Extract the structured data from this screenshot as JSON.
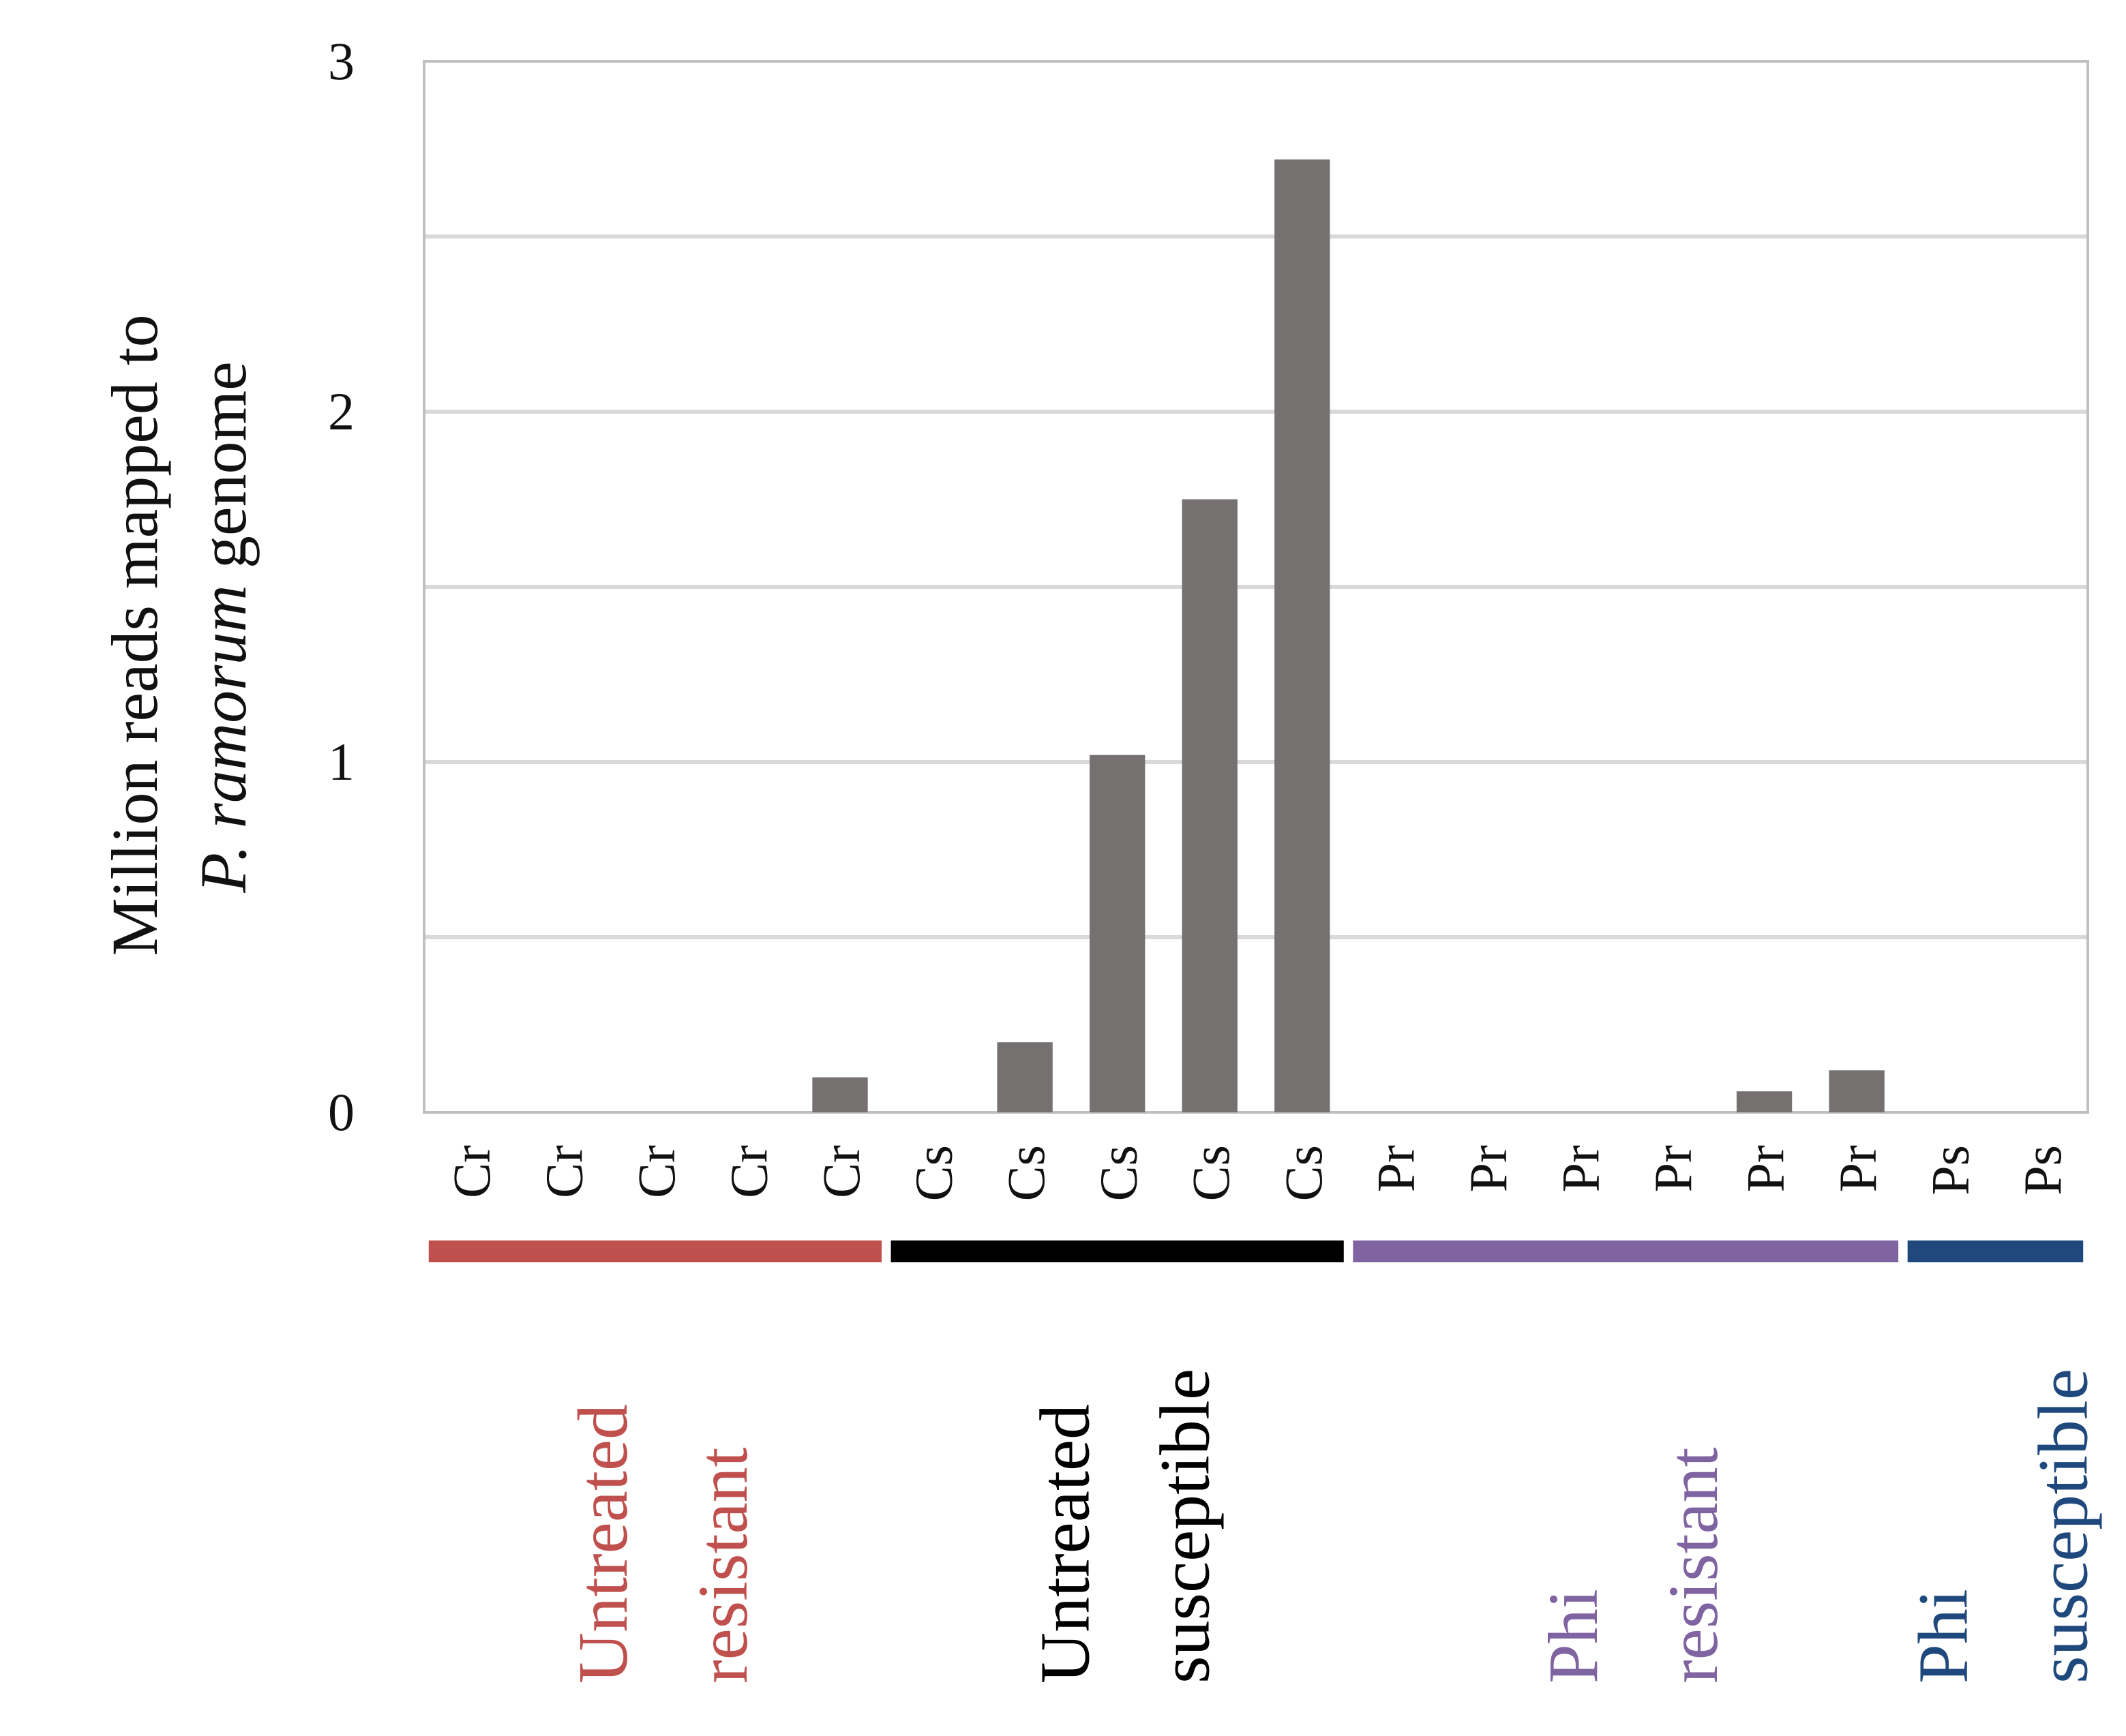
{
  "chart_data": {
    "type": "bar",
    "ylabel_line1": "Million reads mapped to",
    "ylabel_line2_italic": "P. ramorum",
    "ylabel_line2_rest": " genome",
    "ylim": [
      0,
      3
    ],
    "yticks": [
      0,
      1,
      2,
      3
    ],
    "gridlines": [
      0.5,
      1,
      1.5,
      2,
      2.5
    ],
    "grid": true,
    "bar_color": "#767171",
    "categories": [
      "Cr",
      "Cr",
      "Cr",
      "Cr",
      "Cr",
      "Cs",
      "Cs",
      "Cs",
      "Cs",
      "Cs",
      "Pr",
      "Pr",
      "Pr",
      "Pr",
      "Pr",
      "Pr",
      "Ps",
      "Ps"
    ],
    "values": [
      0,
      0,
      0,
      0,
      0.1,
      0,
      0.2,
      1.02,
      1.75,
      2.72,
      0,
      0,
      0,
      0,
      0.06,
      0.12,
      0,
      0
    ],
    "groups": [
      {
        "line1": "Untreated",
        "line2": "resistant",
        "color": "#C0504D",
        "start": 0,
        "end": 4
      },
      {
        "line1": "Untreated",
        "line2": "susceptible",
        "color": "#000000",
        "start": 5,
        "end": 9
      },
      {
        "line1": "Phi",
        "line2": "resistant",
        "color": "#8064A2",
        "start": 10,
        "end": 15
      },
      {
        "line1": "Phi",
        "line2": "susceptible",
        "color": "#1F497D",
        "start": 16,
        "end": 17
      }
    ]
  }
}
